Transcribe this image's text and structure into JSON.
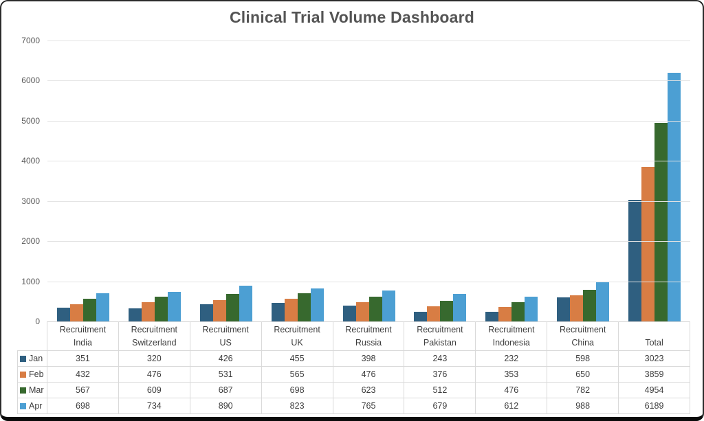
{
  "title": "Clinical Trial Volume Dashboard",
  "colors": {
    "title_text": "#545454",
    "axis_text": "#595959",
    "table_text": "#3d3d3d",
    "gridline": "#e3e3e3",
    "table_border": "#d9d9d9",
    "background": "#ffffff",
    "jan": "#2F5F80",
    "feb": "#D87D44",
    "mar": "#37692E",
    "apr": "#4C9FD3"
  },
  "y_axis": {
    "ticks": [
      7000,
      6000,
      5000,
      4000,
      3000,
      2000,
      1000,
      0
    ]
  },
  "chart_data": {
    "type": "bar",
    "title": "Clinical Trial Volume Dashboard",
    "xlabel": "",
    "ylabel": "",
    "ylim": [
      0,
      7000
    ],
    "y_tick_step": 1000,
    "grid": true,
    "legend_position": "data-table-left",
    "has_data_table": true,
    "categories": [
      "Recruitment India",
      "Recruitment Switzerland",
      "Recruitment US",
      "Recruitment UK",
      "Recruitment Russia",
      "Recruitment Pakistan",
      "Recruitment Indonesia",
      "Recruitment China",
      "Total"
    ],
    "category_labels": [
      {
        "line1": "Recruitment",
        "line2": "India"
      },
      {
        "line1": "Recruitment",
        "line2": "Switzerland"
      },
      {
        "line1": "Recruitment",
        "line2": "US"
      },
      {
        "line1": "Recruitment",
        "line2": "UK"
      },
      {
        "line1": "Recruitment",
        "line2": "Russia"
      },
      {
        "line1": "Recruitment",
        "line2": "Pakistan"
      },
      {
        "line1": "Recruitment",
        "line2": "Indonesia"
      },
      {
        "line1": "Recruitment",
        "line2": "China"
      },
      {
        "line1": "",
        "line2": "Total"
      }
    ],
    "series": [
      {
        "name": "Jan",
        "color": "#2F5F80",
        "values": [
          351,
          320,
          426,
          455,
          398,
          243,
          232,
          598,
          3023
        ]
      },
      {
        "name": "Feb",
        "color": "#D87D44",
        "values": [
          432,
          476,
          531,
          565,
          476,
          376,
          353,
          650,
          3859
        ]
      },
      {
        "name": "Mar",
        "color": "#37692E",
        "values": [
          567,
          609,
          687,
          698,
          623,
          512,
          476,
          782,
          4954
        ]
      },
      {
        "name": "Apr",
        "color": "#4C9FD3",
        "values": [
          698,
          734,
          890,
          823,
          765,
          679,
          612,
          988,
          6189
        ]
      }
    ]
  }
}
